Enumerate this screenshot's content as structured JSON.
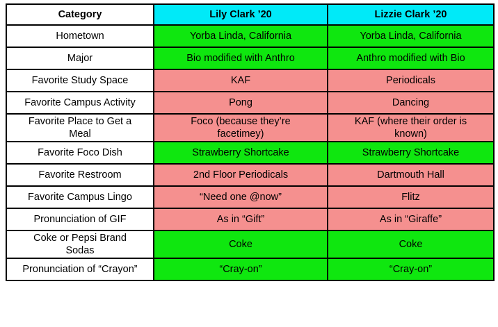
{
  "colors": {
    "header_bg": "#00EAF8",
    "green": "#0FE70F",
    "salmon": "#F5908F",
    "category_bg": "#FFFFFF",
    "border": "#000000",
    "text": "#000000"
  },
  "table": {
    "header": {
      "category": "Category",
      "lily": "Lily Clark ’20",
      "lizzie": "Lizzie Clark ’20"
    },
    "rows": [
      {
        "category": "Hometown",
        "lily": "Yorba Linda, California",
        "lizzie": "Yorba Linda, California",
        "color": "green"
      },
      {
        "category": "Major",
        "lily": "Bio modified with Anthro",
        "lizzie": "Anthro modified with Bio",
        "color": "green"
      },
      {
        "category": "Favorite Study Space",
        "lily": "KAF",
        "lizzie": "Periodicals",
        "color": "salmon"
      },
      {
        "category": "Favorite Campus Activity",
        "lily": "Pong",
        "lizzie": "Dancing",
        "color": "salmon"
      },
      {
        "category": "Favorite Place to Get a\nMeal",
        "lily": "Foco (because they’re\nfacetimey)",
        "lizzie": "KAF (where their order is\nknown)",
        "color": "salmon"
      },
      {
        "category": "Favorite Foco Dish",
        "lily": "Strawberry Shortcake",
        "lizzie": "Strawberry Shortcake",
        "color": "green"
      },
      {
        "category": "Favorite Restroom",
        "lily": "2nd Floor Periodicals",
        "lizzie": "Dartmouth Hall",
        "color": "salmon"
      },
      {
        "category": "Favorite Campus Lingo",
        "lily": "“Need one @now”",
        "lizzie": "Flitz",
        "color": "salmon"
      },
      {
        "category": "Pronunciation of GIF",
        "lily": "As in “Gift”",
        "lizzie": "As in “Giraffe”",
        "color": "salmon"
      },
      {
        "category": "Coke or Pepsi Brand\nSodas",
        "lily": "Coke",
        "lizzie": "Coke",
        "color": "green"
      },
      {
        "category": "Pronunciation of “Crayon”",
        "lily": "“Cray-on”",
        "lizzie": "“Cray-on”",
        "color": "green"
      }
    ]
  }
}
